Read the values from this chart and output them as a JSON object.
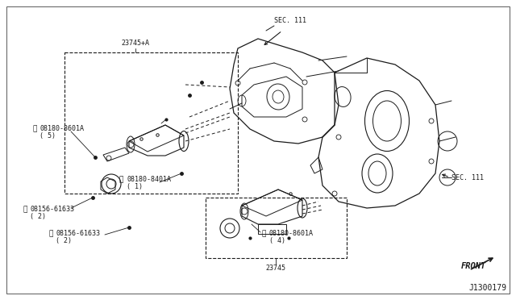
{
  "background_color": "#ffffff",
  "line_color": "#1a1a1a",
  "diagram_number": "J1300179",
  "font_size_labels": 6.0,
  "font_size_small": 5.5,
  "font_size_diagram_id": 7.0,
  "labels": {
    "sec111_top": "SEC. 111",
    "sec111_right": "SEC. 111",
    "front": "FRONT",
    "part_23745A": "23745+A",
    "part_23745": "23745",
    "part_08180_8601A_5_line1": "08180-8601A",
    "part_08180_8601A_5_line2": "( 5)",
    "part_08180_8401A_line1": "08180-8401A",
    "part_08180_8401A_line2": "( 1)",
    "part_08156_61633_2a_line1": "08156-61633",
    "part_08156_61633_2a_line2": "( 2)",
    "part_08156_61633_2b_line1": "08156-61633",
    "part_08156_61633_2b_line2": "( 2)",
    "part_08180_8601A_4_line1": "08180-8601A",
    "part_08180_8601A_4_line2": "( 4)"
  }
}
